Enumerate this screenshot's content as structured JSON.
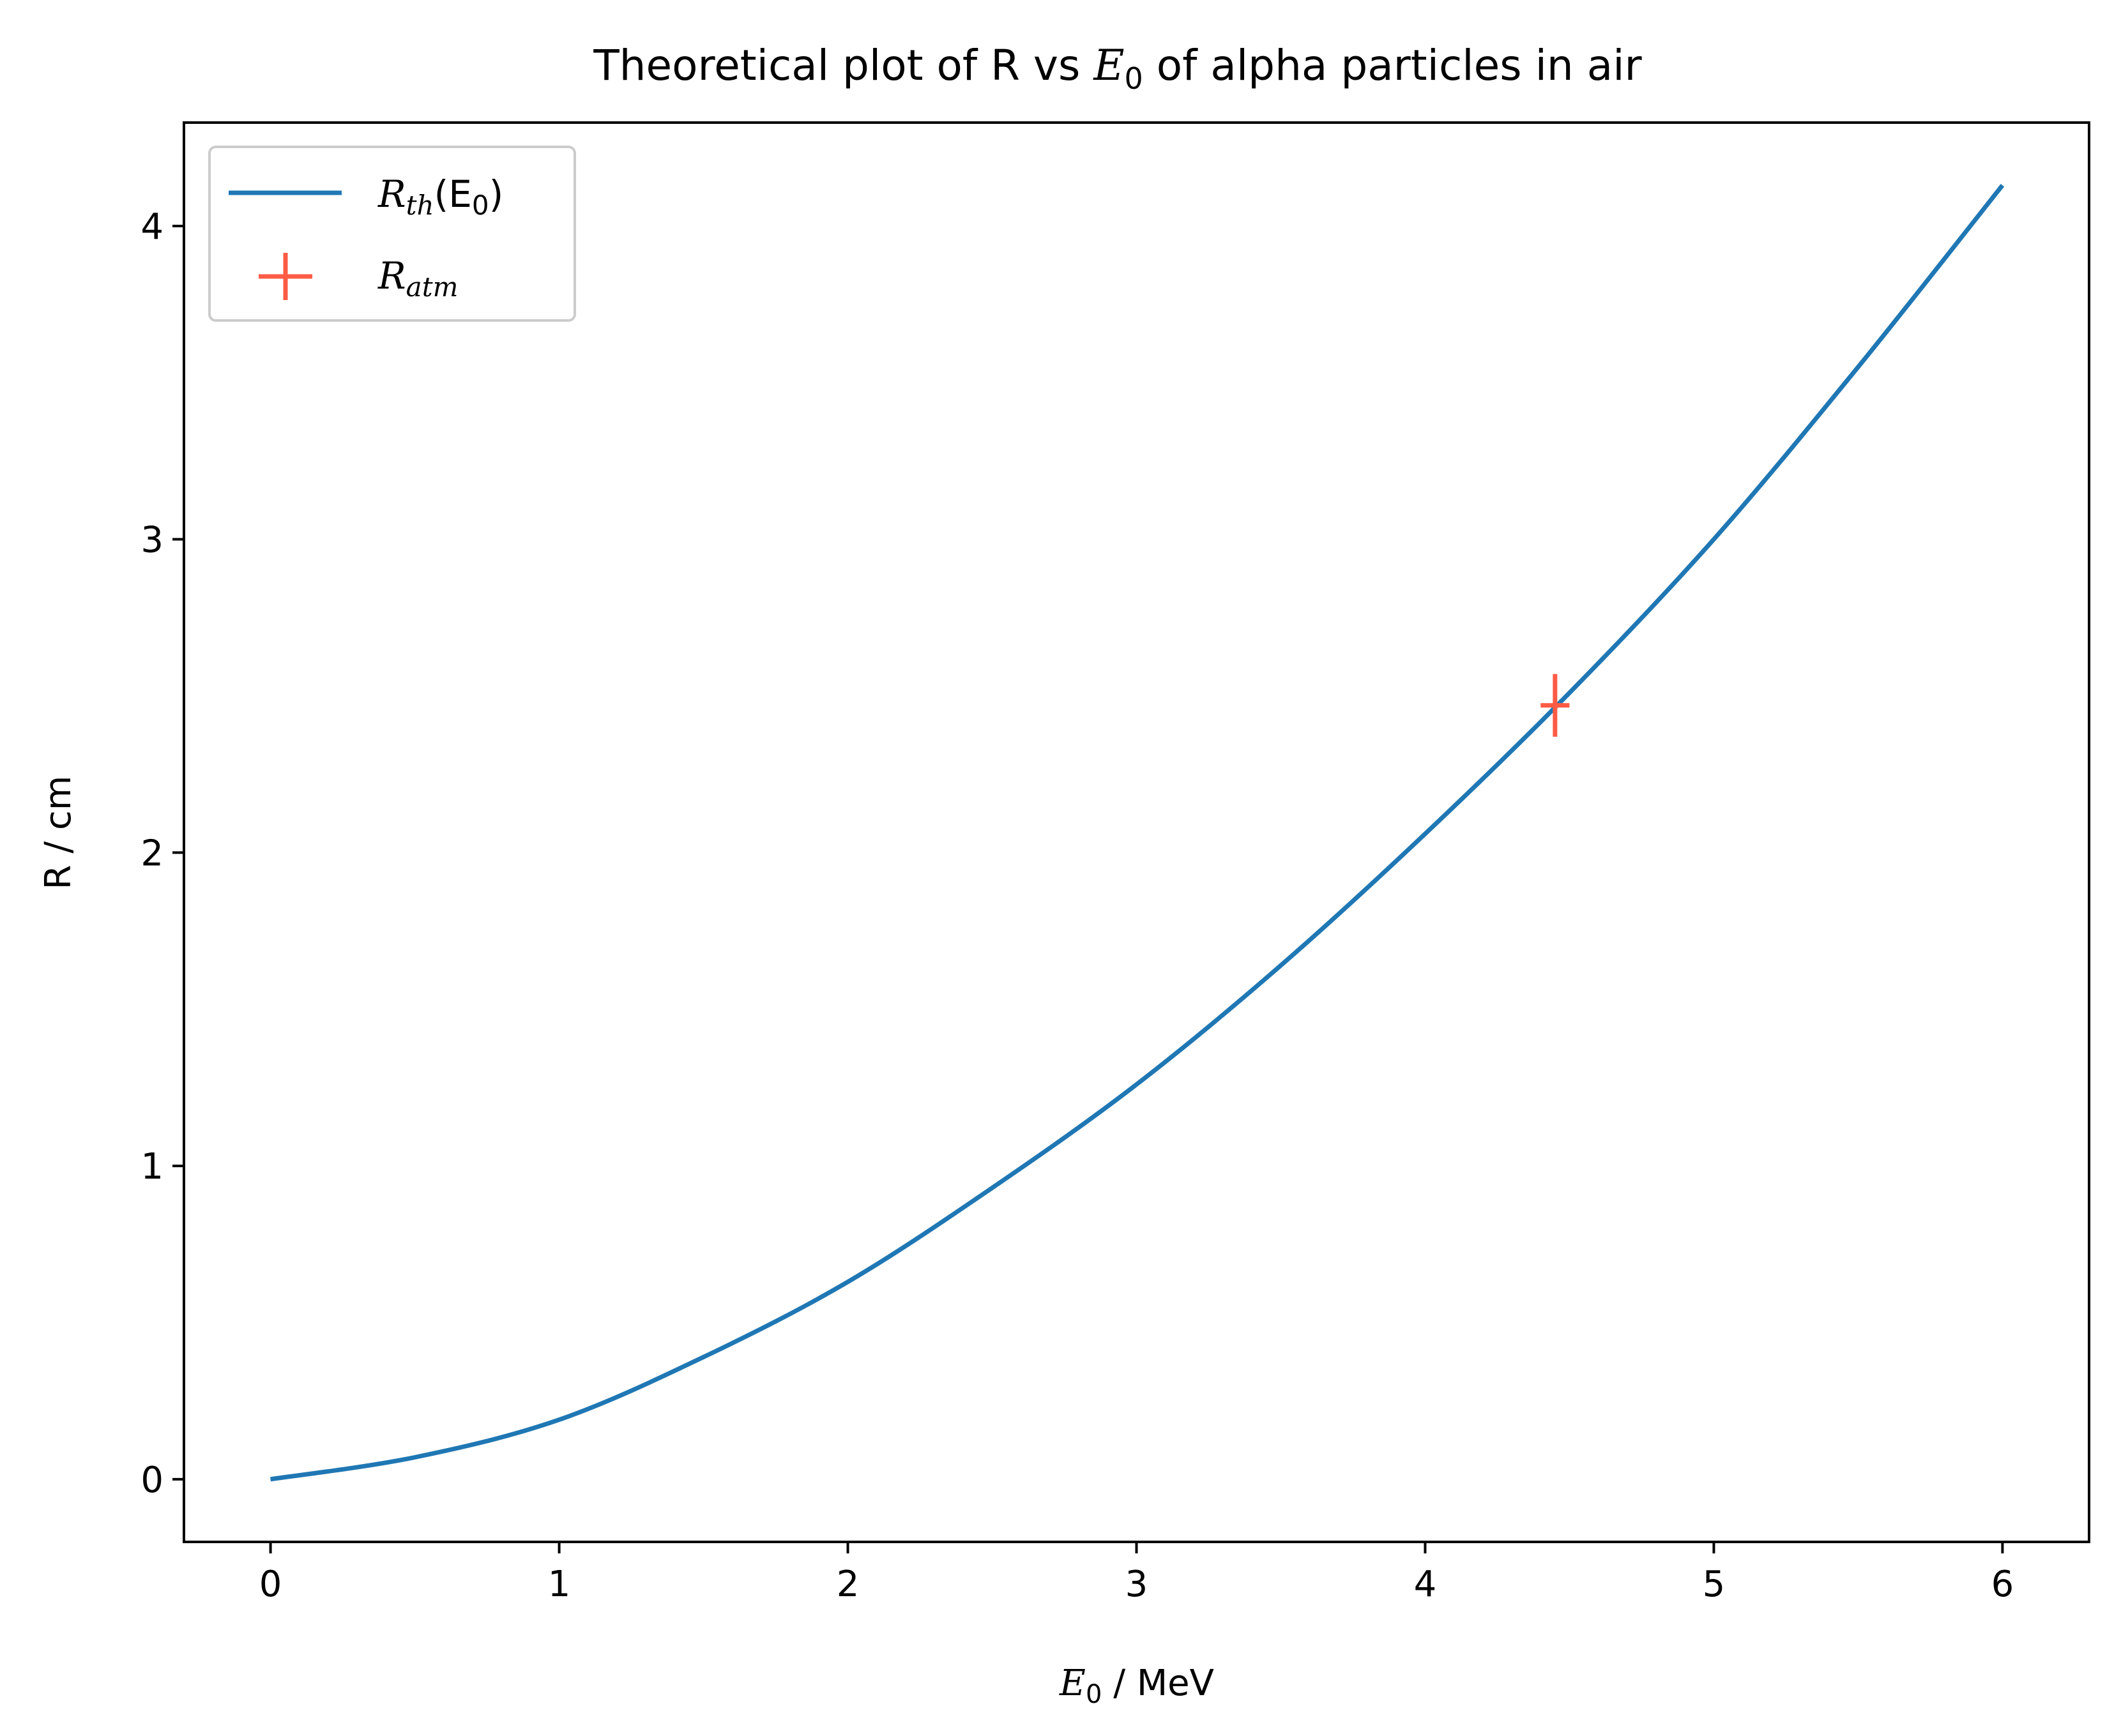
{
  "chart_data": {
    "type": "line",
    "title": {
      "prefix": "Theoretical plot of R vs ",
      "var": "E",
      "sub": "0",
      "suffix": " of alpha particles in air"
    },
    "xlabel": {
      "var": "E",
      "sub": "0",
      "rest": " / MeV"
    },
    "ylabel": "R / cm",
    "xlim": [
      -0.3,
      6.3
    ],
    "ylim": [
      -0.2,
      4.33
    ],
    "xticks": [
      0,
      1,
      2,
      3,
      4,
      5,
      6
    ],
    "yticks": [
      0,
      1,
      2,
      3,
      4
    ],
    "grid": false,
    "legend_position": "upper-left",
    "series": [
      {
        "name": {
          "var": "R",
          "sub": "th",
          "suffix": "(E",
          "suffix_sub": "0",
          "close": ")"
        },
        "kind": "line",
        "color": "#1f77b4",
        "x": [
          0,
          0.5,
          1,
          1.5,
          2,
          2.5,
          3,
          3.5,
          4,
          4.5,
          5,
          5.5,
          6
        ],
        "y": [
          0.0,
          0.07,
          0.19,
          0.39,
          0.63,
          0.93,
          1.26,
          1.64,
          2.06,
          2.51,
          3.0,
          3.55,
          4.13
        ]
      },
      {
        "name": {
          "var": "R",
          "sub": "atm"
        },
        "kind": "errorbar",
        "color": "#ff5b45",
        "x": [
          4.45
        ],
        "y": [
          2.47
        ],
        "xerr": [
          0.05
        ],
        "yerr": [
          0.1
        ]
      }
    ]
  }
}
